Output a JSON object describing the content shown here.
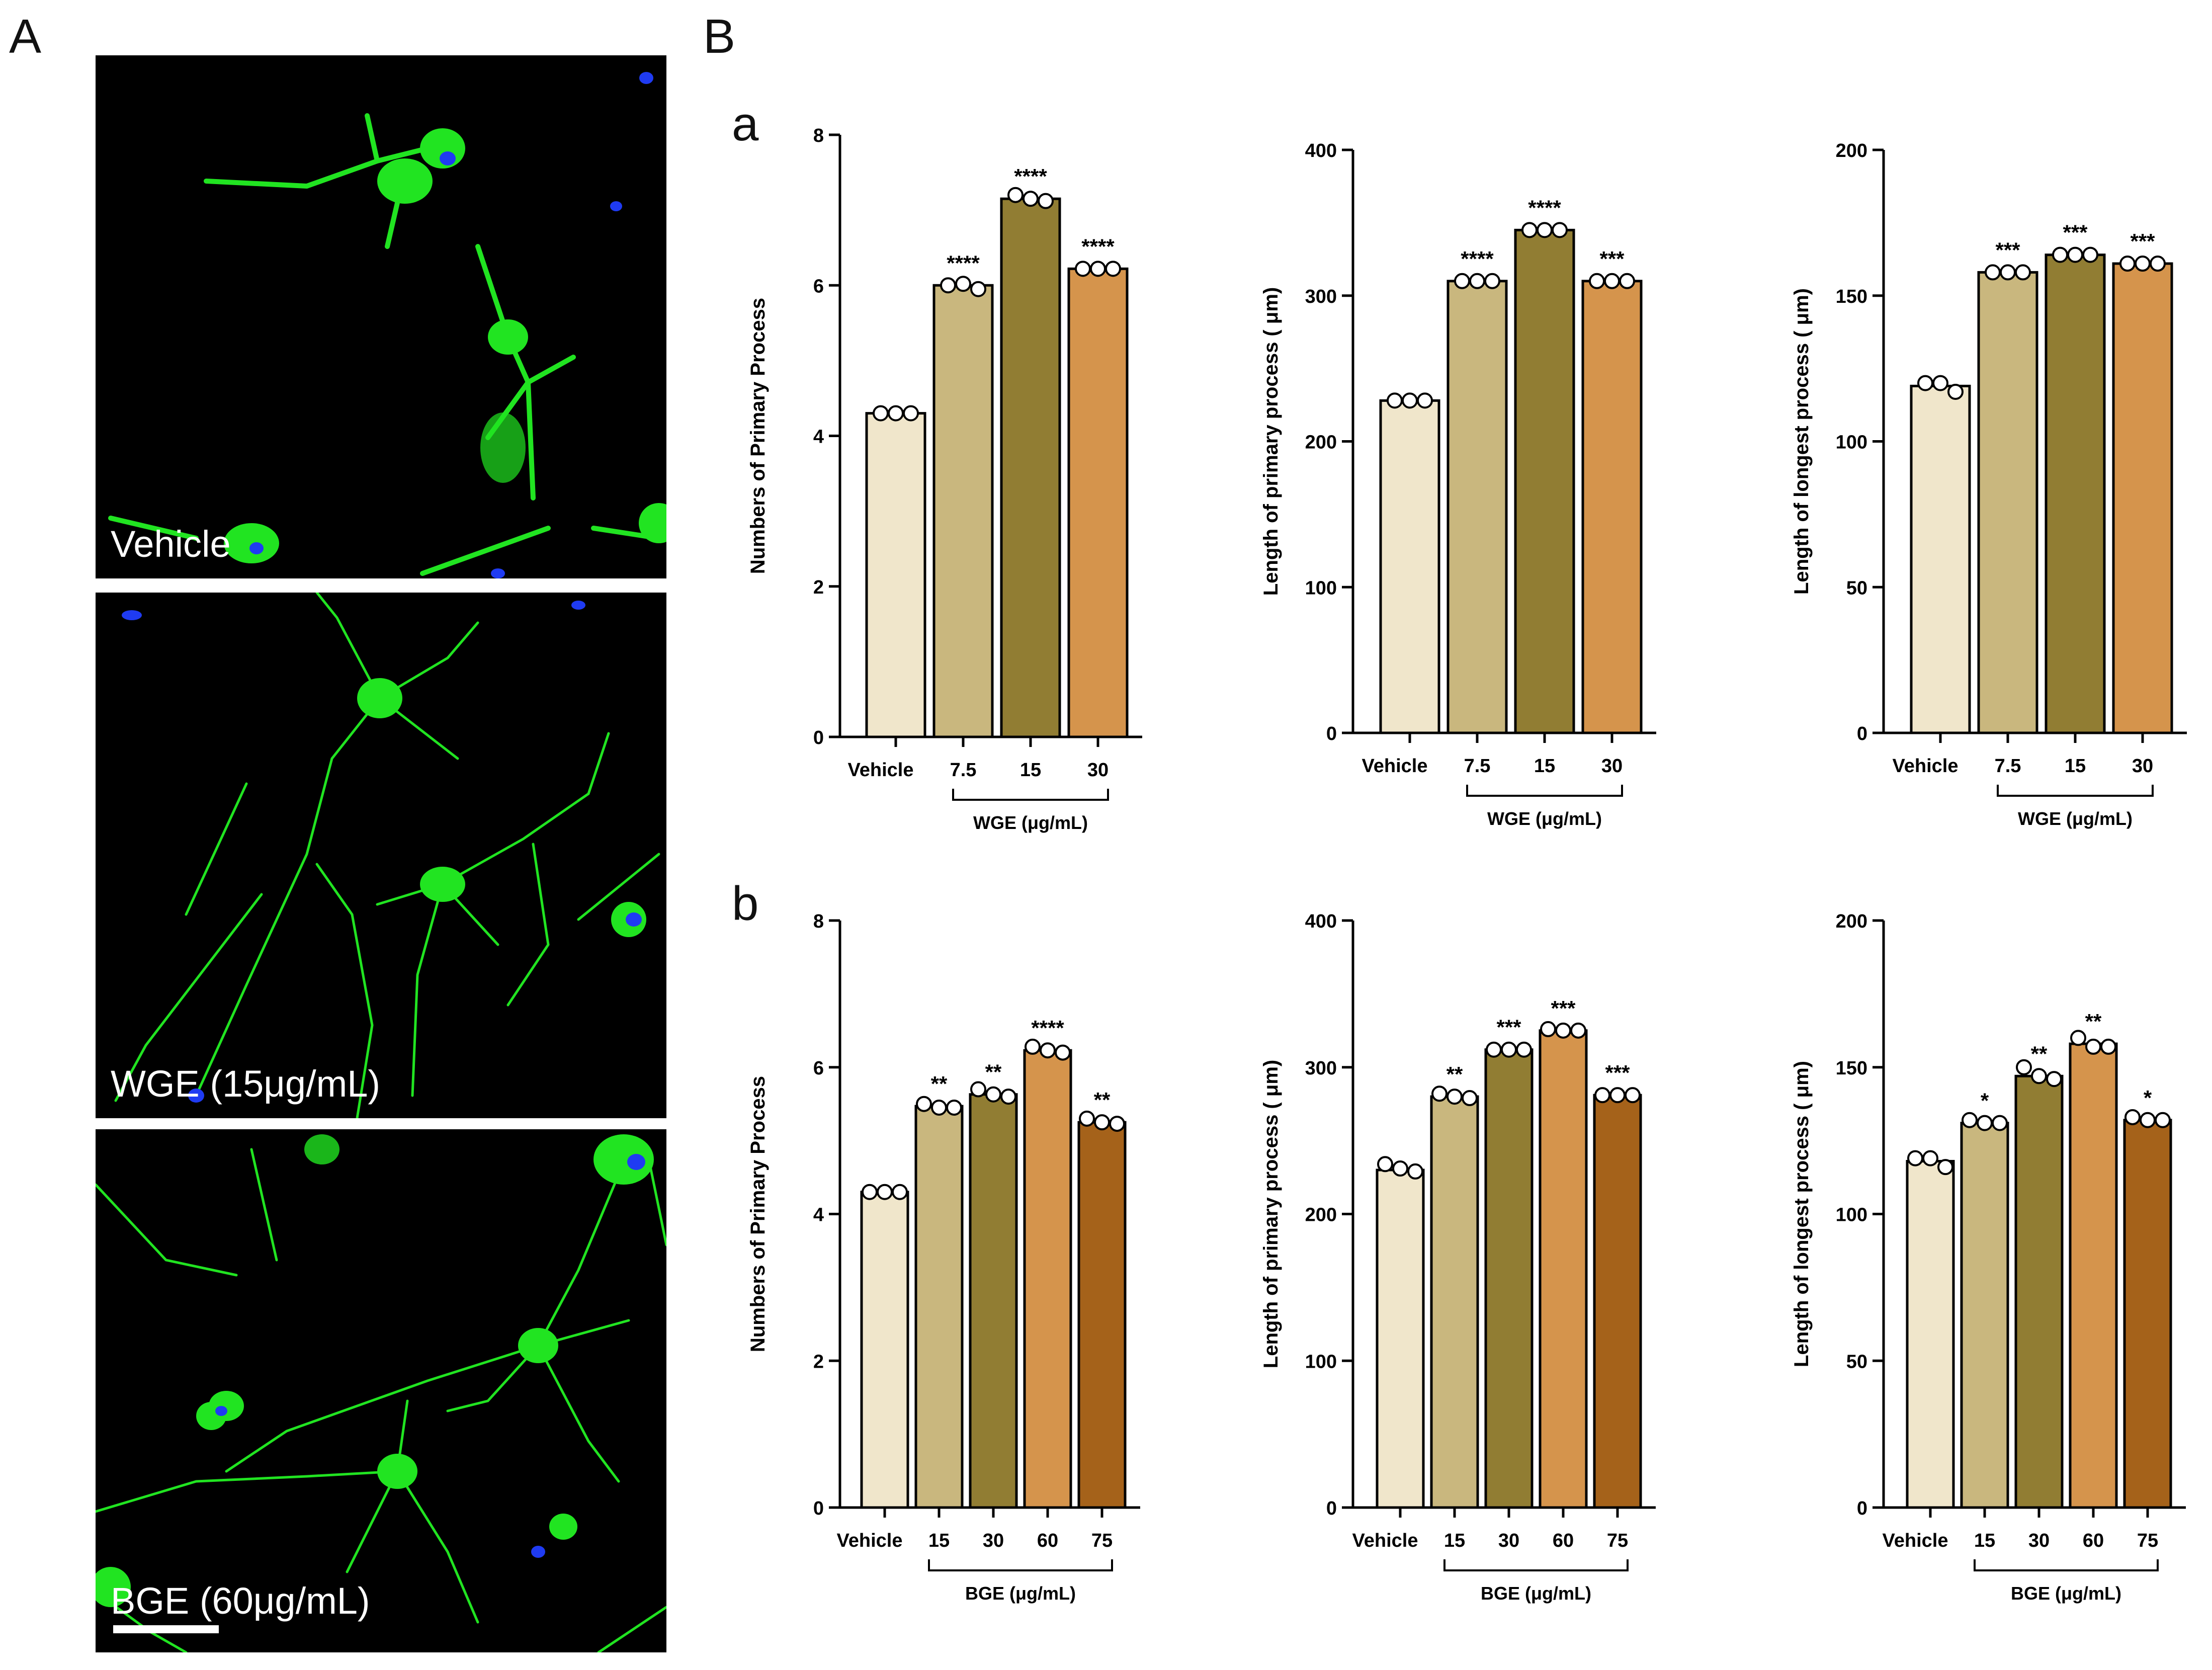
{
  "panels": {
    "A_label": "A",
    "B_label": "B",
    "row_a_label": "a",
    "row_b_label": "b"
  },
  "micrographs": [
    {
      "label": "Vehicle"
    },
    {
      "label": "WGE (15μg/mL)"
    },
    {
      "label": "BGE (60μg/mL)"
    }
  ],
  "colors": {
    "vehicle": "#F0E6CB",
    "c1": "#C9B77E",
    "c2": "#917D33",
    "c3": "#D5944C",
    "c4": "#A5621A",
    "stain_green": "#21E421",
    "stain_blue": "#1F3BF2"
  },
  "chart_data": [
    {
      "type": "bar",
      "row": "a",
      "ylabel": "Numbers of Primary Process",
      "ylim": [
        0,
        8
      ],
      "yticks": [
        "0",
        "2",
        "4",
        "6",
        "8"
      ],
      "categories": [
        "Vehicle",
        "7.5",
        "15",
        "30"
      ],
      "values": [
        4.3,
        6.0,
        7.15,
        6.22
      ],
      "points": [
        [
          4.3,
          4.3,
          4.3
        ],
        [
          6.0,
          6.02,
          5.95
        ],
        [
          7.2,
          7.15,
          7.12
        ],
        [
          6.22,
          6.22,
          6.22
        ]
      ],
      "significance": [
        "",
        "****",
        "****",
        "****"
      ],
      "group_label": "WGE (μg/mL)"
    },
    {
      "type": "bar",
      "row": "a",
      "ylabel": "Length of primary process ( μm)",
      "ylim": [
        0,
        400
      ],
      "yticks": [
        "0",
        "100",
        "200",
        "300",
        "400"
      ],
      "categories": [
        "Vehicle",
        "7.5",
        "15",
        "30"
      ],
      "values": [
        228,
        310,
        345,
        310
      ],
      "points": [
        [
          228,
          228,
          228
        ],
        [
          310,
          310,
          310
        ],
        [
          345,
          345,
          345
        ],
        [
          310,
          310,
          310
        ]
      ],
      "significance": [
        "",
        "****",
        "****",
        "***"
      ],
      "group_label": "WGE (μg/mL)"
    },
    {
      "type": "bar",
      "row": "a",
      "ylabel": "Length of longest process ( μm)",
      "ylim": [
        0,
        200
      ],
      "yticks": [
        "0",
        "50",
        "100",
        "150",
        "200"
      ],
      "categories": [
        "Vehicle",
        "7.5",
        "15",
        "30"
      ],
      "values": [
        119,
        158,
        164,
        161
      ],
      "points": [
        [
          120,
          120,
          117
        ],
        [
          158,
          158,
          158
        ],
        [
          164,
          164,
          164
        ],
        [
          161,
          161,
          161
        ]
      ],
      "significance": [
        "",
        "***",
        "***",
        "***"
      ],
      "group_label": "WGE (μg/mL)"
    },
    {
      "type": "bar",
      "row": "b",
      "ylabel": "Numbers of Primary Process",
      "ylim": [
        0,
        8
      ],
      "yticks": [
        "0",
        "2",
        "4",
        "6",
        "8"
      ],
      "categories": [
        "Vehicle",
        "15",
        "30",
        "60",
        "75"
      ],
      "values": [
        4.3,
        5.47,
        5.63,
        6.23,
        5.25
      ],
      "points": [
        [
          4.3,
          4.3,
          4.3
        ],
        [
          5.5,
          5.45,
          5.45
        ],
        [
          5.7,
          5.63,
          5.6
        ],
        [
          6.28,
          6.23,
          6.2
        ],
        [
          5.3,
          5.25,
          5.23
        ]
      ],
      "significance": [
        "",
        "**",
        "**",
        "****",
        "**"
      ],
      "group_label": "BGE (μg/mL)"
    },
    {
      "type": "bar",
      "row": "b",
      "ylabel": "Length of primary process ( μm)",
      "ylim": [
        0,
        400
      ],
      "yticks": [
        "0",
        "100",
        "200",
        "300",
        "400"
      ],
      "categories": [
        "Vehicle",
        "15",
        "30",
        "60",
        "75"
      ],
      "values": [
        230,
        280,
        312,
        325,
        281
      ],
      "points": [
        [
          234,
          231,
          229
        ],
        [
          282,
          280,
          279
        ],
        [
          312,
          312,
          312
        ],
        [
          326,
          325,
          325
        ],
        [
          281,
          281,
          281
        ]
      ],
      "significance": [
        "",
        "**",
        "***",
        "***",
        "***"
      ],
      "group_label": "BGE (μg/mL)"
    },
    {
      "type": "bar",
      "row": "b",
      "ylabel": "Length of longest process ( μm)",
      "ylim": [
        0,
        200
      ],
      "yticks": [
        "0",
        "50",
        "100",
        "150",
        "200"
      ],
      "categories": [
        "Vehicle",
        "15",
        "30",
        "60",
        "75"
      ],
      "values": [
        118,
        131,
        147,
        158,
        132
      ],
      "points": [
        [
          119,
          119,
          116
        ],
        [
          132,
          131,
          131
        ],
        [
          150,
          147,
          146
        ],
        [
          160,
          157,
          157
        ],
        [
          133,
          132,
          132
        ]
      ],
      "significance": [
        "",
        "*",
        "**",
        "**",
        "*"
      ],
      "group_label": "BGE (μg/mL)"
    }
  ]
}
